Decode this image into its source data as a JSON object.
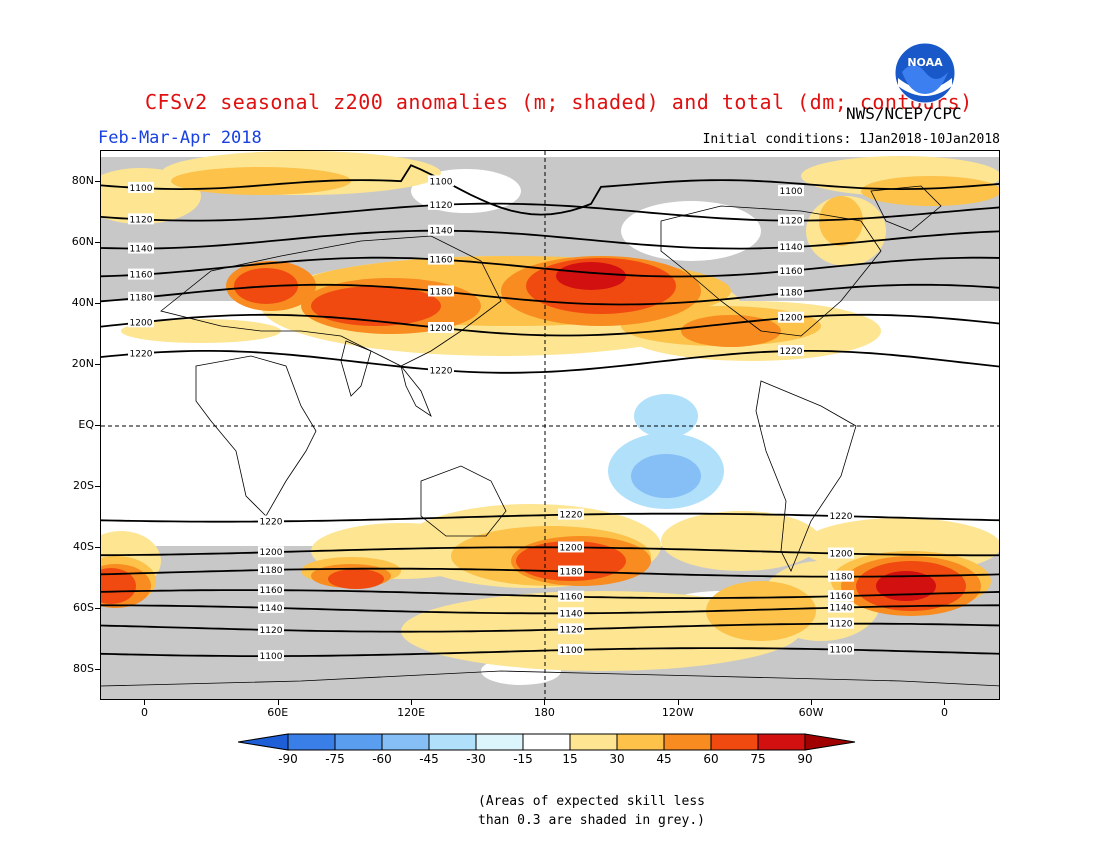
{
  "header": {
    "title": "CFSv2 seasonal z200 anomalies (m; shaded) and total (dm; contours)",
    "agency": "NWS/NCEP/CPC",
    "period": "Feb-Mar-Apr 2018",
    "initial_conditions": "Initial conditions: 1Jan2018-10Jan2018",
    "logo_text": "NOAA"
  },
  "axes": {
    "lat_labels": [
      "80N",
      "60N",
      "40N",
      "20N",
      "EQ",
      "20S",
      "40S",
      "60S",
      "80S"
    ],
    "lat_values": [
      80,
      60,
      40,
      20,
      0,
      -20,
      -40,
      -60,
      -80
    ],
    "lon_labels": [
      "0",
      "60E",
      "120E",
      "180",
      "120W",
      "60W",
      "0"
    ],
    "lon_values": [
      0,
      60,
      120,
      180,
      240,
      300,
      360
    ],
    "lon_range": [
      -20,
      385
    ],
    "lat_range": [
      -90,
      90
    ]
  },
  "contours": {
    "levels": [
      {
        "value": "1100",
        "lat": 79,
        "north": true
      },
      {
        "value": "1120",
        "lat": 70,
        "north": true
      },
      {
        "value": "1140",
        "lat": 61,
        "north": true
      },
      {
        "value": "1160",
        "lat": 52,
        "north": true
      },
      {
        "value": "1180",
        "lat": 43,
        "north": true
      },
      {
        "value": "1200",
        "lat": 33,
        "north": true
      },
      {
        "value": "1220",
        "lat": 21,
        "north": true
      },
      {
        "value": "1220",
        "lat": -30,
        "north": false
      },
      {
        "value": "1200",
        "lat": -41,
        "north": false
      },
      {
        "value": "1180",
        "lat": -48,
        "north": false
      },
      {
        "value": "1160",
        "lat": -55,
        "north": false
      },
      {
        "value": "1140",
        "lat": -60,
        "north": false
      },
      {
        "value": "1120",
        "lat": -66,
        "north": false
      },
      {
        "value": "1100",
        "lat": -74,
        "north": false
      }
    ]
  },
  "colorbar": {
    "ticks": [
      "-90",
      "-75",
      "-60",
      "-45",
      "-30",
      "-15",
      "15",
      "30",
      "45",
      "60",
      "75",
      "90"
    ],
    "colors": [
      "#1e5fd8",
      "#3a7ee8",
      "#5a9ef0",
      "#86bff6",
      "#b0e0fa",
      "#dcf5fc",
      "#ffffff",
      "#fde592",
      "#fcc24a",
      "#f88c20",
      "#f04a10",
      "#d21010",
      "#a00000"
    ]
  },
  "note": {
    "line1": "(Areas of expected skill less",
    "line2": "than 0.3 are shaded in grey.)"
  }
}
